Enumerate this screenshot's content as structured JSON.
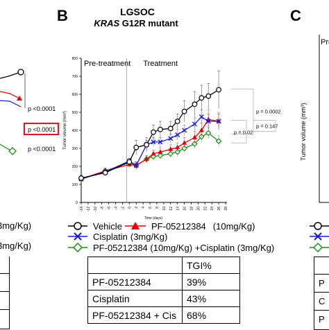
{
  "panel_b": {
    "letter": "B",
    "title": "LGSOC",
    "subtitle_italic": "KRAS",
    "subtitle_rest": " G12R mutant",
    "phase_pre": "Pre-treatment",
    "phase_treat": "Treatment"
  },
  "panel_c": {
    "letter": "C",
    "ylabel": "Tumor volume (mm³)",
    "phase_pre_partial": "Pre"
  },
  "panel_a_partial": {
    "pvalues": [
      "p <0.0001",
      "p <0.0001",
      "p <0.0001"
    ],
    "legend_frags": [
      "3mg/Kg)",
      "3mg/Kg)"
    ]
  },
  "chart_data": {
    "type": "line",
    "ylabel": "Tumor volume (mm³)",
    "xlabel": "Time (days)",
    "x": [
      -14,
      -12,
      -10,
      -8,
      -6,
      -4,
      -2,
      0,
      2,
      4,
      6,
      8,
      10,
      12,
      14,
      16,
      18,
      20,
      22,
      24,
      26,
      28
    ],
    "xticks": [
      "-14",
      "-12",
      "-10",
      "-8",
      "-6",
      "-4",
      "-2",
      "0",
      "2",
      "4",
      "6",
      "8",
      "10",
      "12",
      "14",
      "16",
      "18",
      "20",
      "22",
      "24",
      "26",
      "28"
    ],
    "ylim": [
      0,
      800
    ],
    "yticks": [
      0,
      100,
      200,
      300,
      400,
      500,
      600,
      700,
      800
    ],
    "treatment_start_x": 0,
    "series": [
      {
        "name": "Vehicle",
        "color": "#000000",
        "marker": "circle",
        "x": [
          -14,
          -7,
          0,
          2,
          5,
          7,
          9,
          12,
          14,
          16,
          19,
          21,
          23,
          26
        ],
        "y": [
          135,
          165,
          225,
          305,
          320,
          390,
          405,
          410,
          450,
          505,
          545,
          580,
          590,
          625
        ],
        "err": [
          15,
          15,
          20,
          40,
          40,
          40,
          45,
          40,
          40,
          60,
          70,
          70,
          70,
          105
        ]
      },
      {
        "name": "PF-05212384 (10mg/Kg)",
        "color": "#e00000",
        "marker": "triangle",
        "x": [
          -14,
          -7,
          0,
          2,
          5,
          7,
          9,
          12,
          14,
          16,
          19,
          21,
          23,
          26
        ],
        "y": [
          130,
          175,
          210,
          205,
          240,
          270,
          280,
          295,
          305,
          330,
          360,
          400,
          460,
          450
        ],
        "err": [
          10,
          15,
          15,
          20,
          20,
          20,
          25,
          25,
          25,
          30,
          35,
          40,
          55,
          50
        ]
      },
      {
        "name": "Cisplatin (3mg/Kg)",
        "color": "#1a1acc",
        "marker": "x",
        "x": [
          -14,
          -7,
          0,
          2,
          5,
          7,
          9,
          12,
          14,
          16,
          19,
          21,
          23,
          26
        ],
        "y": [
          130,
          170,
          230,
          205,
          320,
          335,
          335,
          355,
          375,
          400,
          435,
          475,
          450,
          450
        ],
        "err": [
          10,
          15,
          15,
          20,
          25,
          25,
          25,
          25,
          30,
          30,
          35,
          40,
          40,
          40
        ]
      },
      {
        "name": "PF-05212384 (10mg/Kg) +Cisplatin (3mg/Kg)",
        "color": "#1e8c1e",
        "marker": "diamond",
        "x": [
          -14,
          -7,
          0,
          2,
          5,
          7,
          9,
          12,
          14,
          16,
          19,
          21,
          23,
          26
        ],
        "y": [
          130,
          175,
          220,
          205,
          240,
          255,
          260,
          270,
          280,
          300,
          325,
          365,
          385,
          340
        ],
        "err": [
          10,
          15,
          15,
          15,
          20,
          20,
          20,
          20,
          25,
          25,
          25,
          30,
          30,
          30
        ]
      }
    ],
    "annotations": [
      "p = 0.0002",
      "p = 0.02",
      "p = 0.147"
    ]
  },
  "legend": {
    "vehicle": "Vehicle",
    "pf": "PF-05212384",
    "pf_dose": "(10mg/Kg)",
    "cis": "Cisplatin",
    "cis_dose": "(3mg/Kg)",
    "combo": "PF-05212384 (10mg/Kg) +Cisplatin (3mg/Kg)"
  },
  "tgi_table": {
    "header": "TGI%",
    "rows": [
      {
        "label": "PF-05212384",
        "value": "39%"
      },
      {
        "label": "Cisplatin",
        "value": "43%"
      },
      {
        "label": "PF-05212384 + Cis",
        "value": "68%"
      }
    ]
  },
  "left_partial_legend": [
    "0mg/Kg)",
    "3mg/Kg)"
  ]
}
